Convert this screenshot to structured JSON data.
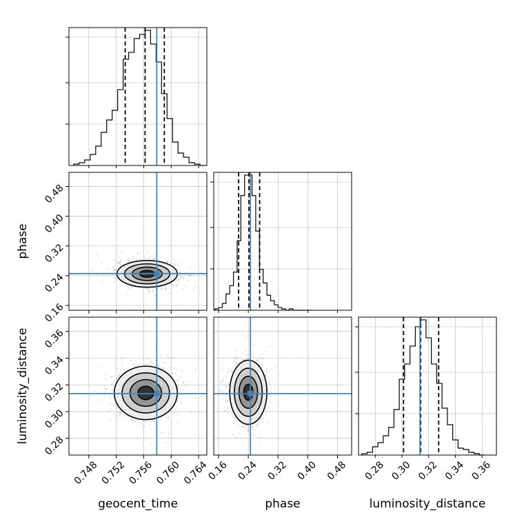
{
  "chart_data": {
    "type": "corner",
    "parameters": [
      "geocent_time",
      "phase",
      "luminosity_distance"
    ],
    "axis_labels": {
      "geocent_time": "geocent_time",
      "phase": "phase",
      "luminosity_distance": "luminosity_distance"
    },
    "ranges": {
      "geocent_time": [
        0.7451,
        0.7652
      ],
      "phase": [
        0.147,
        0.518
      ],
      "luminosity_distance": [
        0.2675,
        0.3707
      ]
    },
    "ticks": {
      "geocent_time": [
        0.748,
        0.752,
        0.756,
        0.76,
        0.764
      ],
      "phase": [
        0.16,
        0.24,
        0.32,
        0.4,
        0.48
      ],
      "luminosity_distance": [
        0.28,
        0.3,
        0.32,
        0.34,
        0.36
      ]
    },
    "tick_labels": {
      "geocent_time": [
        "0.748",
        "0.752",
        "0.756",
        "0.760",
        "0.764"
      ],
      "phase": [
        "0.16",
        "0.24",
        "0.32",
        "0.40",
        "0.48"
      ],
      "luminosity_distance": [
        "0.28",
        "0.30",
        "0.32",
        "0.34",
        "0.36"
      ]
    },
    "truths": {
      "geocent_time": 0.7579,
      "phase": 0.2457,
      "luminosity_distance": 0.3135
    },
    "quantiles": {
      "geocent_time": [
        0.7533,
        0.7562,
        0.759
      ],
      "phase": [
        0.214,
        0.242,
        0.2705
      ],
      "luminosity_distance": [
        0.3012,
        0.314,
        0.3275
      ]
    },
    "hist1d": {
      "geocent_time": {
        "bins": [
          0.7458,
          0.7466,
          0.7474,
          0.7482,
          0.749,
          0.7498,
          0.7506,
          0.7514,
          0.7522,
          0.753,
          0.7538,
          0.7546,
          0.7554,
          0.7562,
          0.757,
          0.7578,
          0.7586,
          0.7594,
          0.7602,
          0.761,
          0.7618,
          0.7626,
          0.7634,
          0.7642,
          0.765
        ],
        "counts": [
          1,
          2,
          4,
          8,
          14,
          24,
          33,
          40,
          55,
          77,
          82,
          92,
          95,
          98,
          88,
          75,
          52,
          34,
          17,
          9,
          6,
          2,
          1,
          0
        ]
      },
      "phase": {
        "bins": [
          0.15,
          0.16,
          0.17,
          0.18,
          0.19,
          0.2,
          0.21,
          0.22,
          0.23,
          0.24,
          0.25,
          0.26,
          0.27,
          0.28,
          0.29,
          0.3,
          0.31,
          0.32,
          0.33,
          0.34,
          0.35,
          0.36,
          0.37,
          0.38,
          0.39,
          0.4,
          0.41
        ],
        "counts": [
          1,
          2,
          5,
          12,
          18,
          28,
          51,
          84,
          99,
          99,
          84,
          58,
          30,
          20,
          11,
          7,
          4,
          2,
          1,
          0,
          1,
          0,
          0,
          0,
          0,
          0
        ]
      },
      "luminosity_distance": {
        "bins": [
          0.27,
          0.274,
          0.278,
          0.282,
          0.286,
          0.29,
          0.294,
          0.298,
          0.302,
          0.306,
          0.31,
          0.314,
          0.318,
          0.322,
          0.326,
          0.33,
          0.334,
          0.338,
          0.342,
          0.346,
          0.35,
          0.354,
          0.358,
          0.362
        ],
        "counts": [
          1,
          2,
          6,
          9,
          14,
          20,
          33,
          55,
          66,
          79,
          93,
          98,
          85,
          66,
          52,
          34,
          22,
          11,
          5,
          4,
          2,
          1,
          0
        ]
      }
    },
    "pairs": [
      {
        "x": "geocent_time",
        "y": "phase",
        "center": [
          0.7565,
          0.245
        ],
        "sigma": [
          0.0022,
          0.018
        ],
        "rho": -0.05,
        "contour_levels": [
          0.5,
          1.0,
          1.5,
          2.0
        ]
      },
      {
        "x": "geocent_time",
        "y": "luminosity_distance",
        "center": [
          0.7563,
          0.314
        ],
        "sigma": [
          0.0023,
          0.01
        ],
        "rho": 0.0,
        "contour_levels": [
          0.5,
          1.0,
          1.5,
          2.0
        ]
      },
      {
        "x": "phase",
        "y": "luminosity_distance",
        "center": [
          0.24,
          0.3145
        ],
        "sigma": [
          0.025,
          0.012
        ],
        "rho": 0.0,
        "contour_levels": [
          0.5,
          1.0,
          1.5,
          2.0
        ]
      }
    ],
    "colors": {
      "truth": "#4682b4",
      "hist": "#000000",
      "grid": "#b0b0b0",
      "quantile": "#000000"
    },
    "grid": true
  }
}
